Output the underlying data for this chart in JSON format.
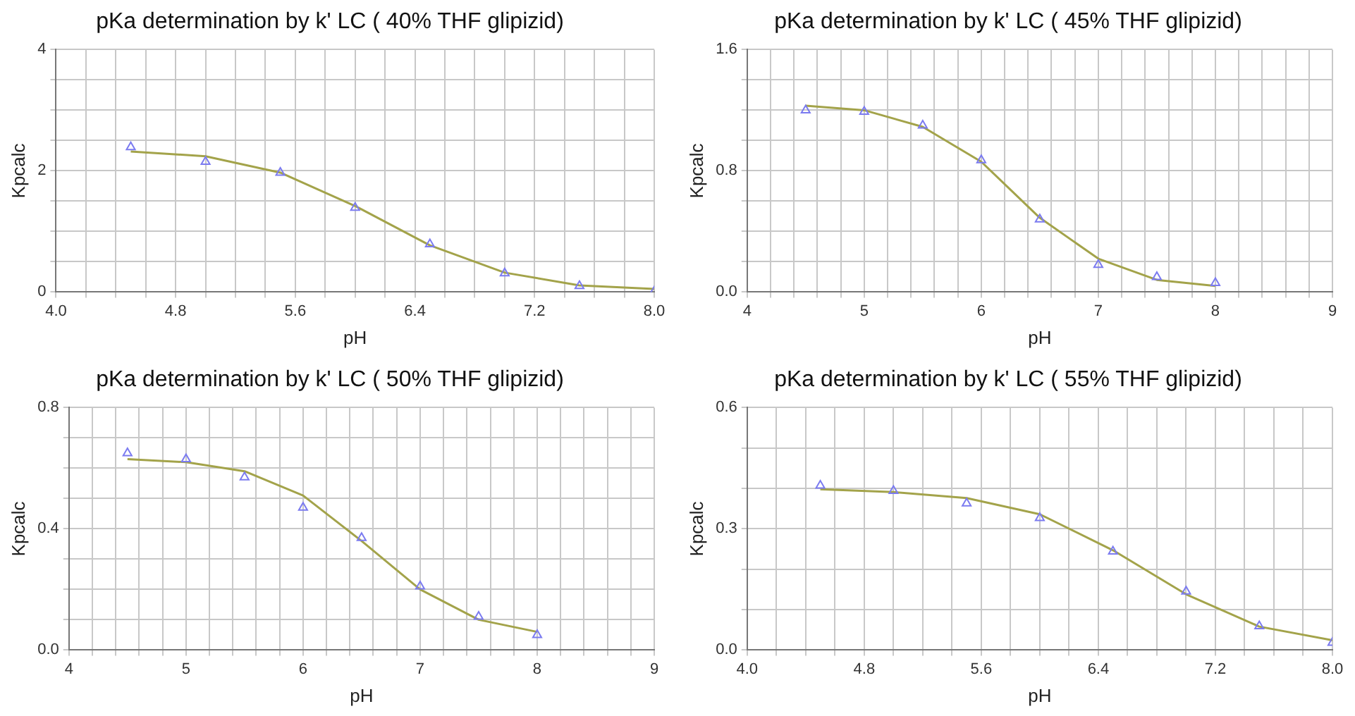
{
  "chart_data": [
    {
      "type": "scatter",
      "title": "pKa determination by k' LC ( 40% THF glipizid)",
      "xlabel": "pH",
      "ylabel": "Kpcalc",
      "x": [
        4.5,
        5,
        5.5,
        6,
        6.5,
        7,
        7.5,
        8
      ],
      "grid": true,
      "series": [
        {
          "type": "scatter",
          "marker": "triangle",
          "color": "#7b7bf0",
          "values": [
            2.39,
            2.15,
            1.97,
            1.39,
            0.79,
            0.31,
            0.1,
            0.01
          ]
        },
        {
          "type": "line",
          "marker": "none",
          "color": "#a3a34a",
          "values": [
            2.32,
            2.24,
            1.97,
            1.42,
            0.77,
            0.32,
            0.11,
            0.05
          ]
        }
      ],
      "xlim": [
        4,
        8
      ],
      "xticks": [
        {
          "value": 4,
          "label": "4.0"
        },
        {
          "value": 4.2,
          "label": null
        },
        {
          "value": 4.4,
          "label": null
        },
        {
          "value": 4.6,
          "label": null
        },
        {
          "value": 4.8,
          "label": "4.8"
        },
        {
          "value": 5,
          "label": null
        },
        {
          "value": 5.2,
          "label": null
        },
        {
          "value": 5.4,
          "label": null
        },
        {
          "value": 5.6,
          "label": "5.6"
        },
        {
          "value": 5.8,
          "label": null
        },
        {
          "value": 6,
          "label": null
        },
        {
          "value": 6.2,
          "label": null
        },
        {
          "value": 6.4,
          "label": "6.4"
        },
        {
          "value": 6.6,
          "label": null
        },
        {
          "value": 6.8,
          "label": null
        },
        {
          "value": 7,
          "label": null
        },
        {
          "value": 7.2,
          "label": "7.2"
        },
        {
          "value": 7.4,
          "label": null
        },
        {
          "value": 7.6,
          "label": null
        },
        {
          "value": 7.8,
          "label": null
        },
        {
          "value": 8,
          "label": "8.0"
        }
      ],
      "ylim": [
        0,
        4
      ],
      "yticks": [
        0,
        {
          "value": 0.5,
          "label": null
        },
        {
          "value": 1,
          "label": null
        },
        {
          "value": 1.5,
          "label": null
        },
        2,
        {
          "value": 2.5,
          "label": null
        },
        {
          "value": 3,
          "label": null
        },
        {
          "value": 3.5,
          "label": null
        },
        4
      ]
    },
    {
      "type": "scatter",
      "title": "pKa determination by k' LC ( 45% THF glipizid)",
      "xlabel": "pH",
      "ylabel": "Kpcalc",
      "x": [
        4.5,
        5,
        5.5,
        6,
        6.5,
        7,
        7.5,
        8
      ],
      "grid": true,
      "series": [
        {
          "type": "scatter",
          "marker": "triangle",
          "color": "#7b7bf0",
          "values": [
            1.2,
            1.19,
            1.1,
            0.87,
            0.48,
            0.18,
            0.1,
            0.06
          ]
        },
        {
          "type": "line",
          "marker": "none",
          "color": "#a3a34a",
          "values": [
            1.23,
            1.2,
            1.09,
            0.86,
            0.49,
            0.22,
            0.08,
            0.04
          ]
        }
      ],
      "xlim": [
        4,
        9
      ],
      "xticks": [
        4,
        {
          "value": 4.2,
          "label": null
        },
        {
          "value": 4.4,
          "label": null
        },
        {
          "value": 4.6,
          "label": null
        },
        {
          "value": 4.8,
          "label": null
        },
        5,
        {
          "value": 5.2,
          "label": null
        },
        {
          "value": 5.4,
          "label": null
        },
        {
          "value": 5.6,
          "label": null
        },
        {
          "value": 5.8,
          "label": null
        },
        6,
        {
          "value": 6.2,
          "label": null
        },
        {
          "value": 6.4,
          "label": null
        },
        {
          "value": 6.6,
          "label": null
        },
        {
          "value": 6.8,
          "label": null
        },
        7,
        {
          "value": 7.2,
          "label": null
        },
        {
          "value": 7.4,
          "label": null
        },
        {
          "value": 7.6,
          "label": null
        },
        {
          "value": 7.8,
          "label": null
        },
        8,
        {
          "value": 8.2,
          "label": null
        },
        {
          "value": 8.4,
          "label": null
        },
        {
          "value": 8.6,
          "label": null
        },
        {
          "value": 8.8,
          "label": null
        },
        9
      ],
      "ylim": [
        0,
        1.6
      ],
      "yticks": [
        {
          "value": 0,
          "label": "0.0"
        },
        {
          "value": 0.2,
          "label": null
        },
        {
          "value": 0.4,
          "label": null
        },
        {
          "value": 0.6,
          "label": null
        },
        0.8,
        {
          "value": 1,
          "label": null
        },
        {
          "value": 1.2,
          "label": null
        },
        {
          "value": 1.4,
          "label": null
        },
        1.6
      ]
    },
    {
      "type": "scatter",
      "title": "pKa determination by k' LC ( 50% THF glipizid)",
      "xlabel": "pH",
      "ylabel": "Kpcalc",
      "x": [
        4.5,
        5,
        5.5,
        6,
        6.5,
        7,
        7.5,
        8
      ],
      "grid": true,
      "series": [
        {
          "type": "scatter",
          "marker": "triangle",
          "color": "#7b7bf0",
          "values": [
            0.65,
            0.63,
            0.57,
            0.47,
            0.37,
            0.21,
            0.11,
            0.05
          ]
        },
        {
          "type": "line",
          "marker": "none",
          "color": "#a3a34a",
          "values": [
            0.63,
            0.62,
            0.59,
            0.51,
            0.36,
            0.2,
            0.1,
            0.06
          ]
        }
      ],
      "xlim": [
        4,
        9
      ],
      "xticks": [
        4,
        {
          "value": 4.2,
          "label": null
        },
        {
          "value": 4.4,
          "label": null
        },
        {
          "value": 4.6,
          "label": null
        },
        {
          "value": 4.8,
          "label": null
        },
        5,
        {
          "value": 5.2,
          "label": null
        },
        {
          "value": 5.4,
          "label": null
        },
        {
          "value": 5.6,
          "label": null
        },
        {
          "value": 5.8,
          "label": null
        },
        6,
        {
          "value": 6.2,
          "label": null
        },
        {
          "value": 6.4,
          "label": null
        },
        {
          "value": 6.6,
          "label": null
        },
        {
          "value": 6.8,
          "label": null
        },
        7,
        {
          "value": 7.2,
          "label": null
        },
        {
          "value": 7.4,
          "label": null
        },
        {
          "value": 7.6,
          "label": null
        },
        {
          "value": 7.8,
          "label": null
        },
        8,
        {
          "value": 8.2,
          "label": null
        },
        {
          "value": 8.4,
          "label": null
        },
        {
          "value": 8.6,
          "label": null
        },
        {
          "value": 8.8,
          "label": null
        },
        9
      ],
      "ylim": [
        0,
        0.8
      ],
      "yticks": [
        {
          "value": 0,
          "label": "0.0"
        },
        {
          "value": 0.1,
          "label": null
        },
        {
          "value": 0.2,
          "label": null
        },
        {
          "value": 0.3,
          "label": null
        },
        0.4,
        {
          "value": 0.5,
          "label": null
        },
        {
          "value": 0.6,
          "label": null
        },
        {
          "value": 0.7,
          "label": null
        },
        0.8
      ]
    },
    {
      "type": "scatter",
      "title": "pKa determination by k' LC ( 55% THF glipizid)",
      "xlabel": "pH",
      "ylabel": "Kpcalc",
      "x": [
        4.5,
        5,
        5.5,
        6,
        6.5,
        7,
        7.5,
        8
      ],
      "grid": true,
      "series": [
        {
          "type": "scatter",
          "marker": "triangle",
          "color": "#7b7bf0",
          "values": [
            0.407,
            0.394,
            0.363,
            0.327,
            0.244,
            0.145,
            0.059,
            0.018
          ]
        },
        {
          "type": "line",
          "marker": "none",
          "color": "#a3a34a",
          "values": [
            0.398,
            0.391,
            0.376,
            0.336,
            0.247,
            0.138,
            0.058,
            0.024
          ]
        }
      ],
      "xlim": [
        4,
        8
      ],
      "xticks": [
        {
          "value": 4,
          "label": "4.0"
        },
        {
          "value": 4.2,
          "label": null
        },
        {
          "value": 4.4,
          "label": null
        },
        {
          "value": 4.6,
          "label": null
        },
        {
          "value": 4.8,
          "label": "4.8"
        },
        {
          "value": 5,
          "label": null
        },
        {
          "value": 5.2,
          "label": null
        },
        {
          "value": 5.4,
          "label": null
        },
        {
          "value": 5.6,
          "label": "5.6"
        },
        {
          "value": 5.8,
          "label": null
        },
        {
          "value": 6,
          "label": null
        },
        {
          "value": 6.2,
          "label": null
        },
        {
          "value": 6.4,
          "label": "6.4"
        },
        {
          "value": 6.6,
          "label": null
        },
        {
          "value": 6.8,
          "label": null
        },
        {
          "value": 7,
          "label": null
        },
        {
          "value": 7.2,
          "label": "7.2"
        },
        {
          "value": 7.4,
          "label": null
        },
        {
          "value": 7.6,
          "label": null
        },
        {
          "value": 7.8,
          "label": null
        },
        {
          "value": 8,
          "label": "8.0"
        }
      ],
      "ylim": [
        0,
        0.6
      ],
      "yticks": [
        {
          "value": 0,
          "label": "0.0"
        },
        {
          "value": 0.1,
          "label": null
        },
        {
          "value": 0.2,
          "label": null
        },
        0.3,
        {
          "value": 0.4,
          "label": null
        },
        {
          "value": 0.5,
          "label": null
        },
        {
          "value": 0.6,
          "label": "0.6"
        }
      ]
    }
  ]
}
